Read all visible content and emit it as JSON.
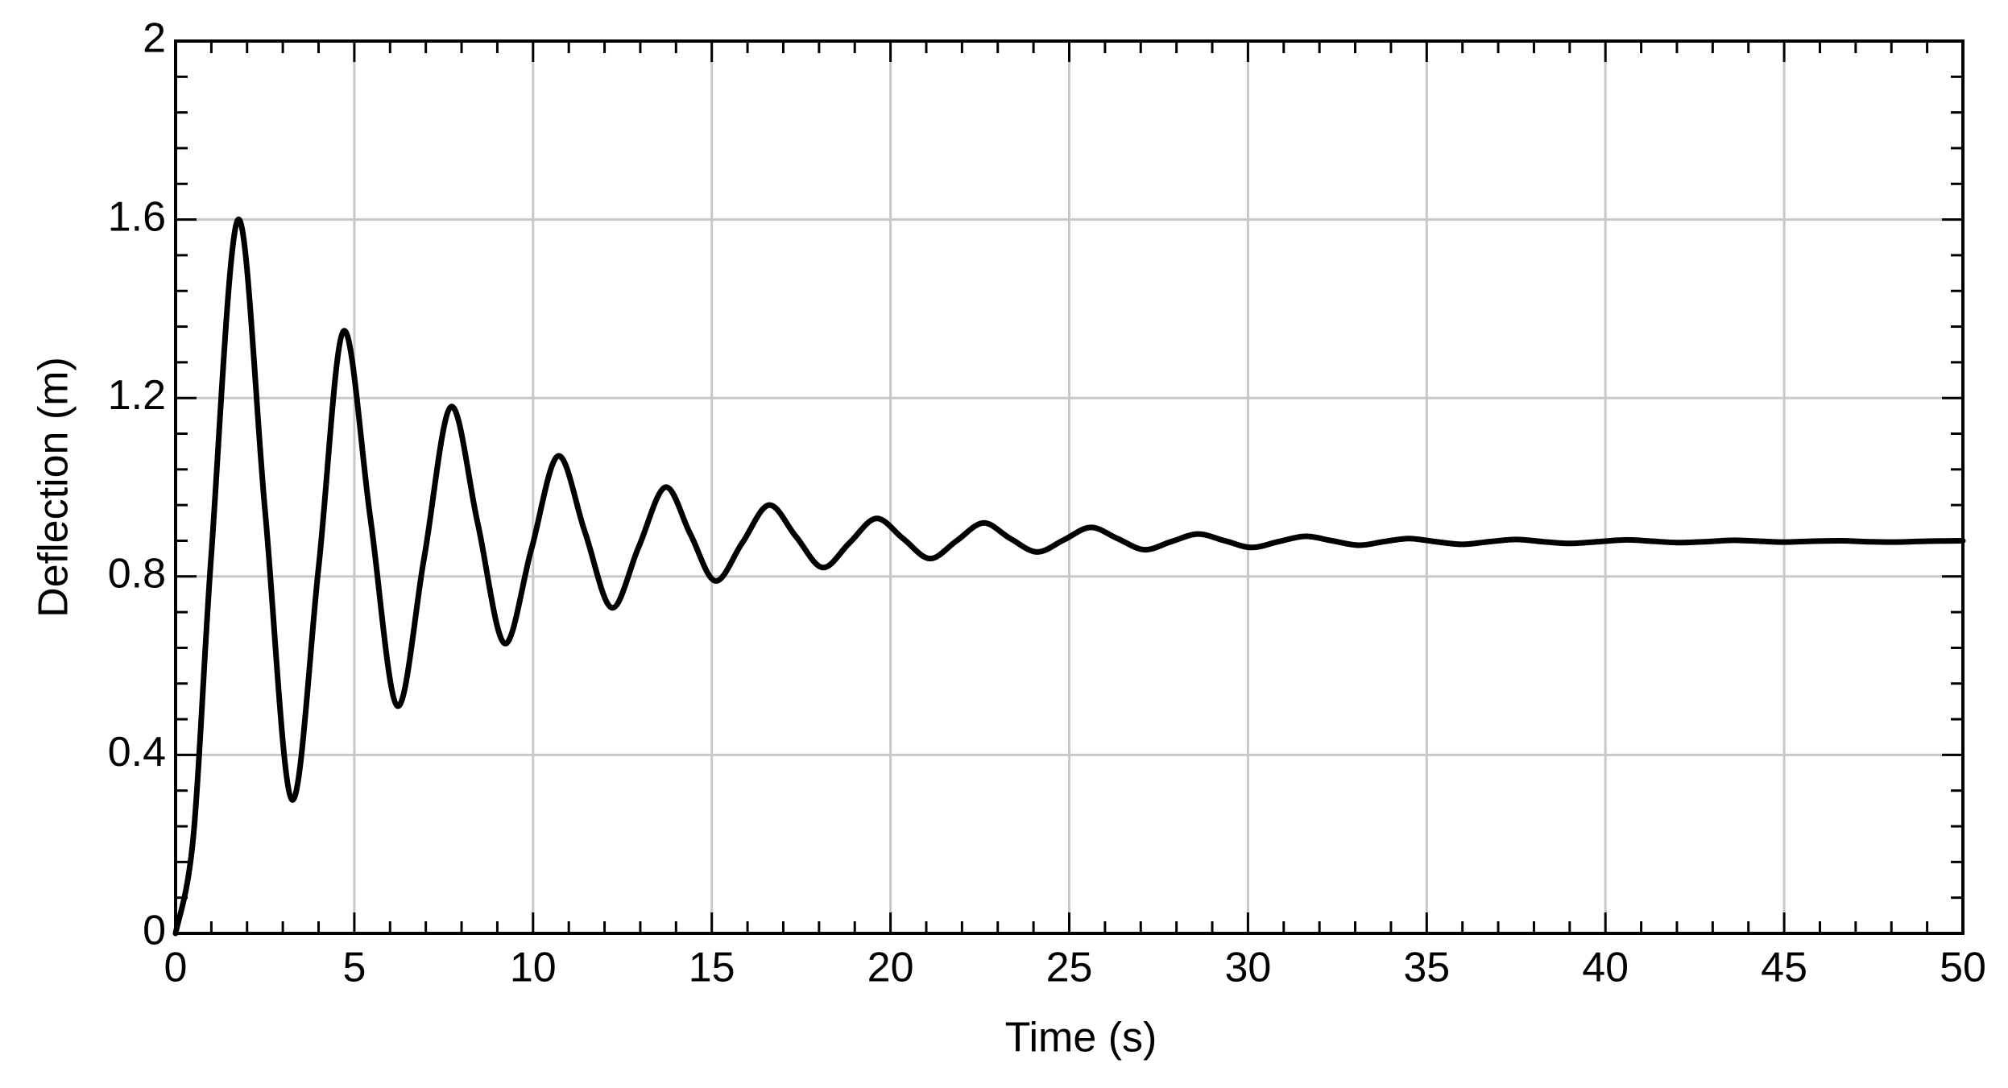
{
  "chart_data": {
    "type": "line",
    "x_label": "Time (s)",
    "y_label": "Deflection (m)",
    "xlim": [
      0,
      50
    ],
    "ylim": [
      0,
      2
    ],
    "xticks": [
      0,
      5,
      10,
      15,
      20,
      25,
      30,
      35,
      40,
      45,
      50
    ],
    "yticks": [
      0,
      0.4,
      0.8,
      1.2,
      1.6,
      2
    ],
    "grid": true,
    "x": [
      0,
      0.5,
      1,
      1.75,
      2.5,
      3.25,
      4,
      4.7,
      5.45,
      6.2,
      6.95,
      7.7,
      8.45,
      9.2,
      9.95,
      10.7,
      11.45,
      12.2,
      12.95,
      13.7,
      14.4,
      15.1,
      15.85,
      16.6,
      17.35,
      18.1,
      18.85,
      19.6,
      20.35,
      21.1,
      21.85,
      22.6,
      23.35,
      24.1,
      24.85,
      25.6,
      26.35,
      27.1,
      27.85,
      28.6,
      29.35,
      30.1,
      30.85,
      31.6,
      32.35,
      33.1,
      33.8,
      34.5,
      35.25,
      36,
      36.75,
      37.5,
      38.25,
      39,
      39.8,
      40.6,
      41.3,
      42,
      42.8,
      43.6,
      44.3,
      45,
      45.8,
      46.6,
      47.3,
      48,
      49,
      50
    ],
    "series": [
      {
        "color": "#000000",
        "values": [
          0,
          0.22,
          0.85,
          1.6,
          0.95,
          0.3,
          0.82,
          1.35,
          0.93,
          0.51,
          0.84,
          1.18,
          0.92,
          0.65,
          0.86,
          1.07,
          0.9,
          0.73,
          0.865,
          1.0,
          0.895,
          0.79,
          0.875,
          0.96,
          0.89,
          0.82,
          0.875,
          0.93,
          0.885,
          0.84,
          0.88,
          0.92,
          0.885,
          0.855,
          0.882,
          0.91,
          0.885,
          0.86,
          0.878,
          0.895,
          0.88,
          0.865,
          0.878,
          0.89,
          0.88,
          0.87,
          0.878,
          0.885,
          0.878,
          0.872,
          0.878,
          0.883,
          0.878,
          0.874,
          0.878,
          0.882,
          0.879,
          0.876,
          0.878,
          0.881,
          0.879,
          0.877,
          0.879,
          0.88,
          0.878,
          0.877,
          0.879,
          0.88
        ]
      }
    ]
  }
}
